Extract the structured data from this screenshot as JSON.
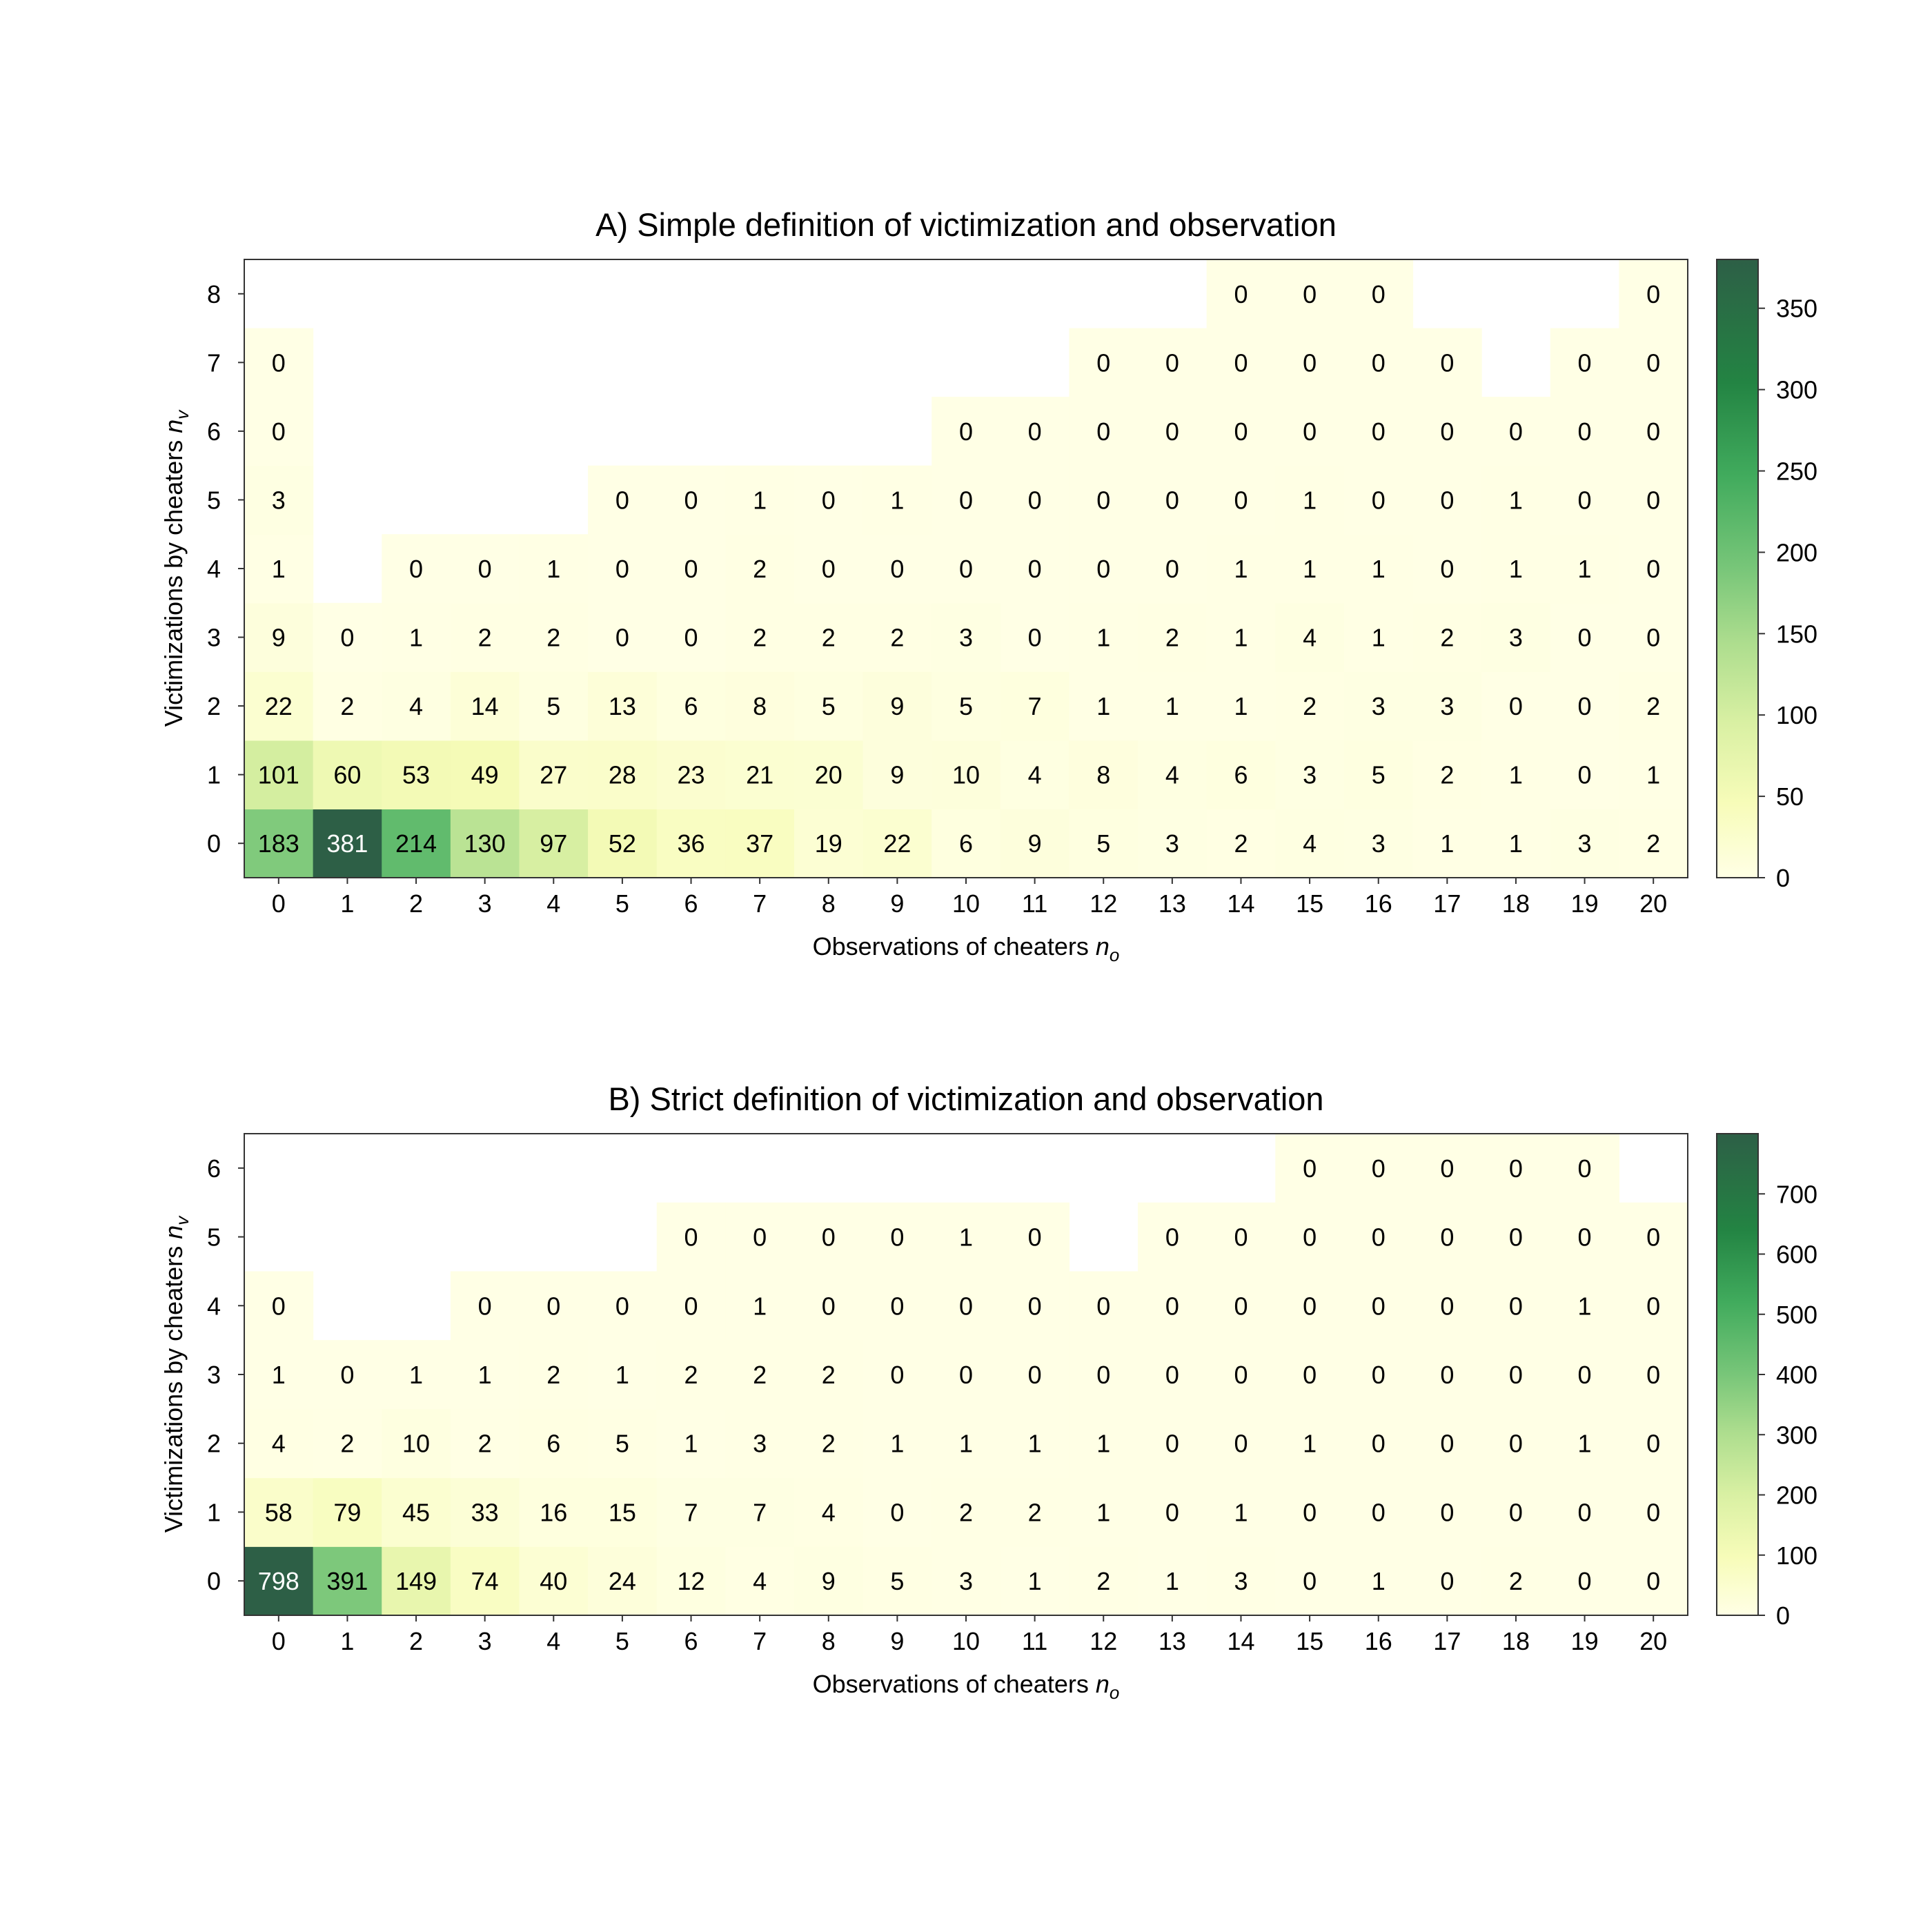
{
  "chart_data": [
    {
      "type": "heatmap",
      "title": "A) Simple definition of victimization and observation",
      "xlabel": "Observations of cheaters",
      "xlabel_symbol": "n",
      "xlabel_subscript": "o",
      "ylabel": "Victimizations by cheaters",
      "ylabel_symbol": "n",
      "ylabel_subscript": "v",
      "x": [
        0,
        1,
        2,
        3,
        4,
        5,
        6,
        7,
        8,
        9,
        10,
        11,
        12,
        13,
        14,
        15,
        16,
        17,
        18,
        19,
        20
      ],
      "y": [
        0,
        1,
        2,
        3,
        4,
        5,
        6,
        7,
        8
      ],
      "colorbar": {
        "min": 0,
        "max": 380,
        "ticks": [
          0,
          50,
          100,
          150,
          200,
          250,
          300,
          350
        ]
      },
      "values": [
        [
          183,
          381,
          214,
          130,
          97,
          52,
          36,
          37,
          19,
          22,
          6,
          9,
          5,
          3,
          2,
          4,
          3,
          1,
          1,
          3,
          2
        ],
        [
          101,
          60,
          53,
          49,
          27,
          28,
          23,
          21,
          20,
          9,
          10,
          4,
          8,
          4,
          6,
          3,
          5,
          2,
          1,
          0,
          1
        ],
        [
          22,
          2,
          4,
          14,
          5,
          13,
          6,
          8,
          5,
          9,
          5,
          7,
          1,
          1,
          1,
          2,
          3,
          3,
          0,
          0,
          2
        ],
        [
          9,
          0,
          1,
          2,
          2,
          0,
          0,
          2,
          2,
          2,
          3,
          0,
          1,
          2,
          1,
          4,
          1,
          2,
          3,
          0,
          0
        ],
        [
          1,
          null,
          0,
          0,
          1,
          0,
          0,
          2,
          0,
          0,
          0,
          0,
          0,
          0,
          1,
          1,
          1,
          0,
          1,
          1,
          0
        ],
        [
          3,
          null,
          null,
          null,
          null,
          0,
          0,
          1,
          0,
          1,
          0,
          0,
          0,
          0,
          0,
          1,
          0,
          0,
          1,
          0,
          0
        ],
        [
          0,
          null,
          null,
          null,
          null,
          null,
          null,
          null,
          null,
          null,
          0,
          0,
          0,
          0,
          0,
          0,
          0,
          0,
          0,
          0,
          0
        ],
        [
          0,
          null,
          null,
          null,
          null,
          null,
          null,
          null,
          null,
          null,
          null,
          null,
          0,
          0,
          0,
          0,
          0,
          0,
          null,
          0,
          0
        ],
        [
          null,
          null,
          null,
          null,
          null,
          null,
          null,
          null,
          null,
          null,
          null,
          null,
          null,
          null,
          0,
          0,
          0,
          null,
          null,
          null,
          0
        ]
      ]
    },
    {
      "type": "heatmap",
      "title": "B) Strict definition of victimization and observation",
      "xlabel": "Observations of cheaters",
      "xlabel_symbol": "n",
      "xlabel_subscript": "o",
      "ylabel": "Victimizations by cheaters",
      "ylabel_symbol": "n",
      "ylabel_subscript": "v",
      "x": [
        0,
        1,
        2,
        3,
        4,
        5,
        6,
        7,
        8,
        9,
        10,
        11,
        12,
        13,
        14,
        15,
        16,
        17,
        18,
        19,
        20
      ],
      "y": [
        0,
        1,
        2,
        3,
        4,
        5,
        6
      ],
      "colorbar": {
        "min": 0,
        "max": 800,
        "ticks": [
          0,
          100,
          200,
          300,
          400,
          500,
          600,
          700
        ]
      },
      "values": [
        [
          798,
          391,
          149,
          74,
          40,
          24,
          12,
          4,
          9,
          5,
          3,
          1,
          2,
          1,
          3,
          0,
          1,
          0,
          2,
          0,
          0
        ],
        [
          58,
          79,
          45,
          33,
          16,
          15,
          7,
          7,
          4,
          0,
          2,
          2,
          1,
          0,
          1,
          0,
          0,
          0,
          0,
          0,
          0
        ],
        [
          4,
          2,
          10,
          2,
          6,
          5,
          1,
          3,
          2,
          1,
          1,
          1,
          1,
          0,
          0,
          1,
          0,
          0,
          0,
          1,
          0
        ],
        [
          1,
          0,
          1,
          1,
          2,
          1,
          2,
          2,
          2,
          0,
          0,
          0,
          0,
          0,
          0,
          0,
          0,
          0,
          0,
          0,
          0
        ],
        [
          0,
          null,
          null,
          0,
          0,
          0,
          0,
          1,
          0,
          0,
          0,
          0,
          0,
          0,
          0,
          0,
          0,
          0,
          0,
          1,
          0
        ],
        [
          null,
          null,
          null,
          null,
          null,
          null,
          0,
          0,
          0,
          0,
          1,
          0,
          null,
          0,
          0,
          0,
          0,
          0,
          0,
          0,
          0
        ],
        [
          null,
          null,
          null,
          null,
          null,
          null,
          null,
          null,
          null,
          null,
          null,
          null,
          null,
          null,
          null,
          0,
          0,
          0,
          0,
          0,
          null
        ]
      ]
    }
  ]
}
